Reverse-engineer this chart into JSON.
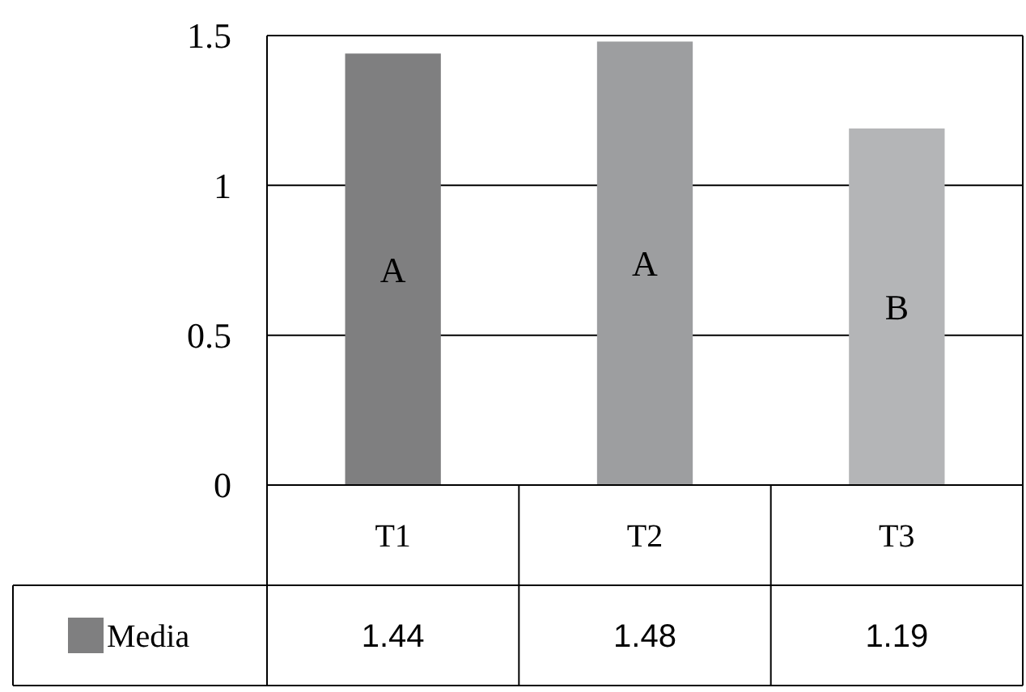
{
  "chart_data": {
    "type": "bar",
    "categories": [
      "T1",
      "T2",
      "T3"
    ],
    "series": [
      {
        "name": "Media",
        "color": "#7f7f80",
        "colors": [
          "#7f7f80",
          "#9d9ea0",
          "#b4b5b7"
        ],
        "values": [
          1.44,
          1.48,
          1.19
        ]
      }
    ],
    "ylim": [
      0,
      1.5
    ],
    "yticks": [
      0,
      0.5,
      1,
      1.5
    ],
    "grid": "y",
    "data_labels": true,
    "legend": "bottom",
    "annotations": [
      "A",
      "A",
      "B"
    ]
  }
}
